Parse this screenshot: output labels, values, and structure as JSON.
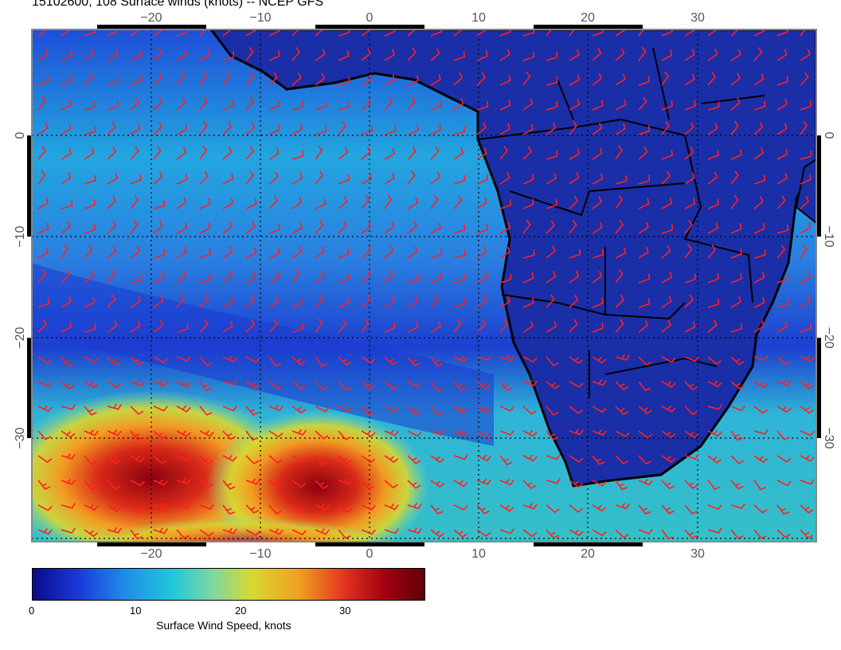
{
  "title": "15102600, 108 Surface winds (knots) -- NCEP GFS",
  "map": {
    "lon_ticks": [
      "−20",
      "−10",
      "0",
      "10",
      "20",
      "30"
    ],
    "lat_ticks": [
      "0",
      "−10",
      "−20",
      "−30"
    ],
    "barb_color": "#ff2020",
    "coast_color": "#000000"
  },
  "colorbar": {
    "title": "Surface Wind Speed, knots",
    "ticks": [
      "0",
      "10",
      "20",
      "30"
    ],
    "colors": [
      "#0a0a8a",
      "#1a3adc",
      "#1f8fe8",
      "#22c8d8",
      "#7ed8a0",
      "#d8d830",
      "#f0a020",
      "#e03020",
      "#a00010",
      "#600008"
    ]
  }
}
